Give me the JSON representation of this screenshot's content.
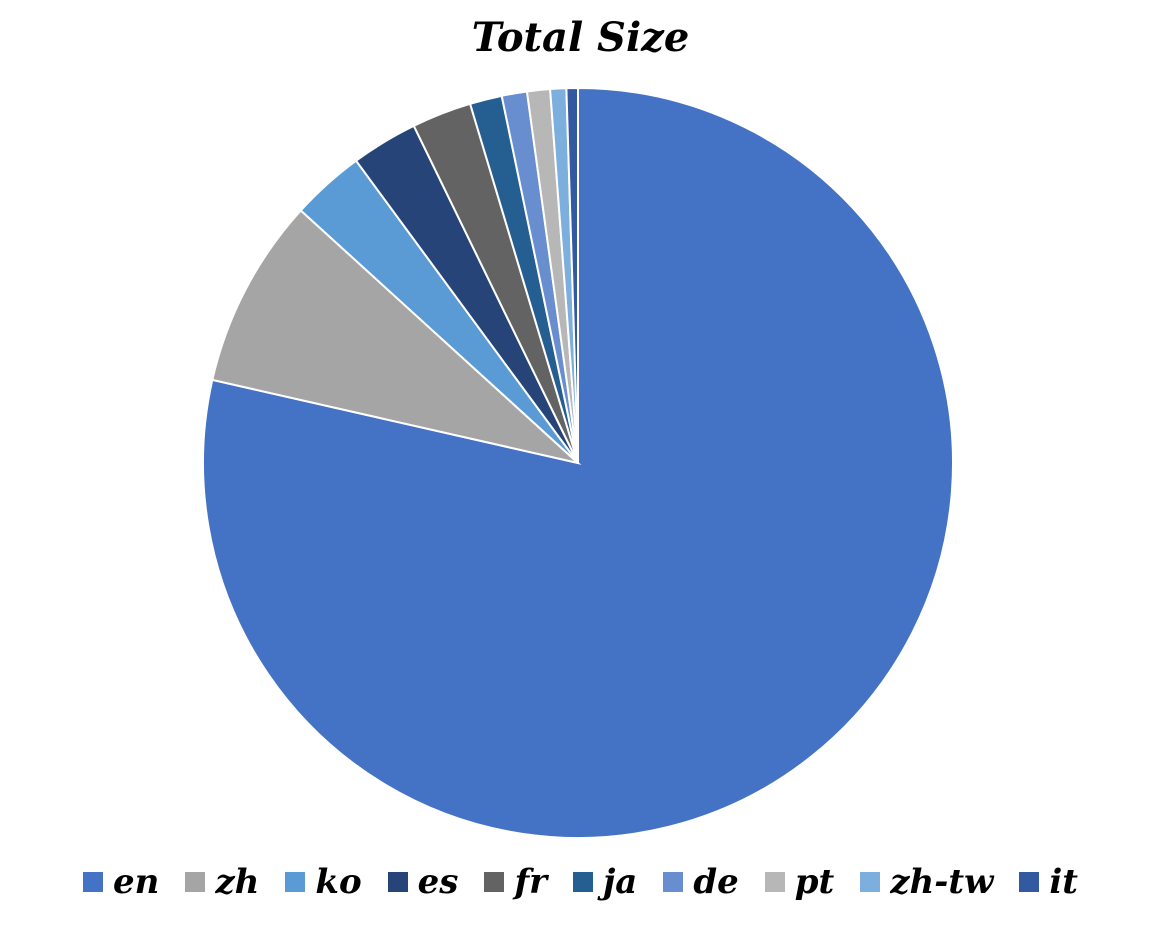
{
  "chart_data": {
    "type": "pie",
    "title": "Total Size",
    "legend_position": "bottom",
    "categories": [
      "en",
      "zh",
      "ko",
      "es",
      "fr",
      "ja",
      "de",
      "pt",
      "zh-tw",
      "it"
    ],
    "values": [
      79.5,
      8.3,
      3.2,
      2.9,
      2.6,
      1.4,
      1.1,
      1.0,
      0.7,
      0.5
    ],
    "colors": [
      "#4472C4",
      "#A5A5A5",
      "#5B9BD5",
      "#264478",
      "#636363",
      "#255E91",
      "#698ED0",
      "#B7B7B7",
      "#7CAFDD",
      "#335AA1"
    ]
  }
}
